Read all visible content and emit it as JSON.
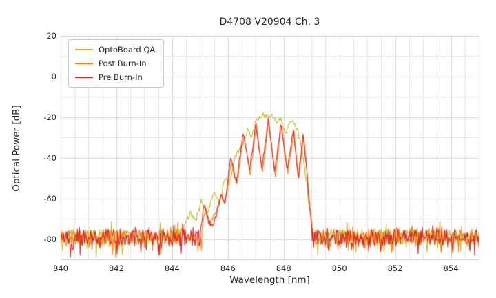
{
  "chart_data": {
    "type": "line",
    "title": "D4708 V20904 Ch. 3",
    "xlabel": "Wavelength [nm]",
    "ylabel": "Optical Power [dB]",
    "xlim": [
      840,
      855
    ],
    "ylim": [
      -90,
      20
    ],
    "xticks": [
      840,
      842,
      844,
      846,
      848,
      850,
      852,
      854
    ],
    "yticks": [
      20,
      0,
      -20,
      -40,
      -60,
      -80
    ],
    "grid": true,
    "minor_grid_x_step_nm": 0.5,
    "minor_grid_y_step_db": 10,
    "legend_position": "upper left",
    "noise": {
      "floor_db": -79,
      "amplitude_db": 4,
      "min_db": -89,
      "max_db": -67
    },
    "series": [
      {
        "name": "OptoBoard QA",
        "color": "#bcbd22",
        "envelope": [
          [
            844.4,
            -74
          ],
          [
            844.65,
            -67
          ],
          [
            844.85,
            -71
          ],
          [
            845.05,
            -61
          ],
          [
            845.25,
            -67
          ],
          [
            845.5,
            -57
          ],
          [
            845.7,
            -62
          ],
          [
            845.9,
            -50
          ],
          [
            846.05,
            -54
          ],
          [
            846.25,
            -40
          ],
          [
            846.4,
            -36
          ],
          [
            846.55,
            -33
          ],
          [
            846.7,
            -26
          ],
          [
            846.85,
            -29
          ],
          [
            847.0,
            -22
          ],
          [
            847.15,
            -20
          ],
          [
            847.3,
            -19
          ],
          [
            847.45,
            -20
          ],
          [
            847.6,
            -19.5
          ],
          [
            847.75,
            -23
          ],
          [
            847.9,
            -21
          ],
          [
            848.05,
            -28
          ],
          [
            848.2,
            -24
          ],
          [
            848.35,
            -22
          ],
          [
            848.5,
            -27
          ],
          [
            848.65,
            -35
          ],
          [
            848.78,
            -48
          ],
          [
            848.9,
            -62
          ],
          [
            849.05,
            -76
          ]
        ]
      },
      {
        "name": "Post Burn-In",
        "color": "#ff7f0e",
        "envelope": [
          [
            845.05,
            -76
          ],
          [
            845.2,
            -65
          ],
          [
            845.35,
            -72
          ],
          [
            845.6,
            -66
          ],
          [
            845.78,
            -57
          ],
          [
            845.9,
            -63
          ],
          [
            846.12,
            -42
          ],
          [
            846.32,
            -54
          ],
          [
            846.57,
            -29
          ],
          [
            846.8,
            -48
          ],
          [
            847.02,
            -24
          ],
          [
            847.24,
            -47
          ],
          [
            847.47,
            -22
          ],
          [
            847.7,
            -49
          ],
          [
            847.92,
            -23.5
          ],
          [
            848.14,
            -48
          ],
          [
            848.37,
            -27
          ],
          [
            848.54,
            -52
          ],
          [
            848.72,
            -29
          ],
          [
            848.84,
            -47
          ],
          [
            848.94,
            -64
          ],
          [
            849.04,
            -77
          ]
        ]
      },
      {
        "name": "Pre Burn-In",
        "color": "#d62728",
        "envelope": [
          [
            845.0,
            -77
          ],
          [
            845.15,
            -63
          ],
          [
            845.3,
            -71
          ],
          [
            845.45,
            -74
          ],
          [
            845.6,
            -68
          ],
          [
            845.75,
            -58
          ],
          [
            845.88,
            -64
          ],
          [
            846.1,
            -40
          ],
          [
            846.3,
            -52
          ],
          [
            846.55,
            -28
          ],
          [
            846.78,
            -46
          ],
          [
            847.0,
            -23.5
          ],
          [
            847.22,
            -45
          ],
          [
            847.45,
            -21.5
          ],
          [
            847.68,
            -47
          ],
          [
            847.9,
            -23
          ],
          [
            848.12,
            -46
          ],
          [
            848.35,
            -26.5
          ],
          [
            848.52,
            -50
          ],
          [
            848.7,
            -28.5
          ],
          [
            848.82,
            -45
          ],
          [
            848.92,
            -62
          ],
          [
            849.02,
            -76
          ]
        ]
      }
    ]
  }
}
